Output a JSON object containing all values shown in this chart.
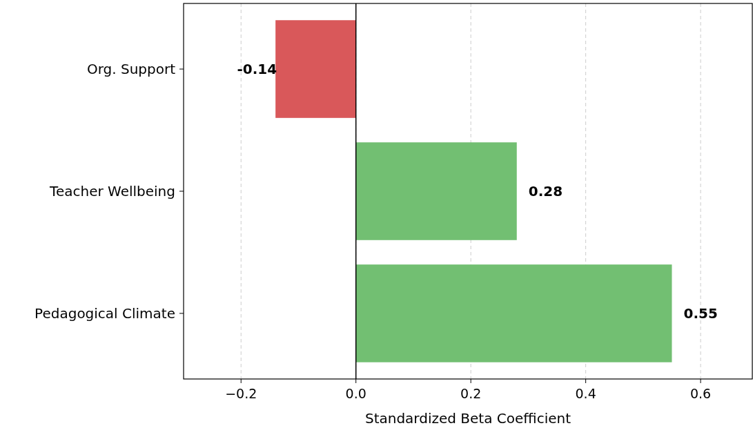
{
  "chart_data": {
    "type": "bar",
    "orientation": "horizontal",
    "categories": [
      "Org. Support",
      "Teacher Wellbeing",
      "Pedagogical Climate"
    ],
    "values": [
      -0.14,
      0.28,
      0.55
    ],
    "colors": [
      "#d9585a",
      "#72bf72",
      "#72bf72"
    ],
    "xlabel": "Standardized Beta Coefficient",
    "xlim": [
      -0.3,
      0.69
    ],
    "xticks": [
      {
        "value": -0.2,
        "label": "−0.2"
      },
      {
        "value": 0,
        "label": "0.0"
      },
      {
        "value": 0.2,
        "label": "0.2"
      },
      {
        "value": 0.4,
        "label": "0.4"
      },
      {
        "value": 0.6,
        "label": "0.6"
      }
    ],
    "grid": "x",
    "data_labels": true,
    "ref_lines": [
      {
        "axis": "x",
        "value": 0,
        "color": "#000000"
      }
    ]
  }
}
